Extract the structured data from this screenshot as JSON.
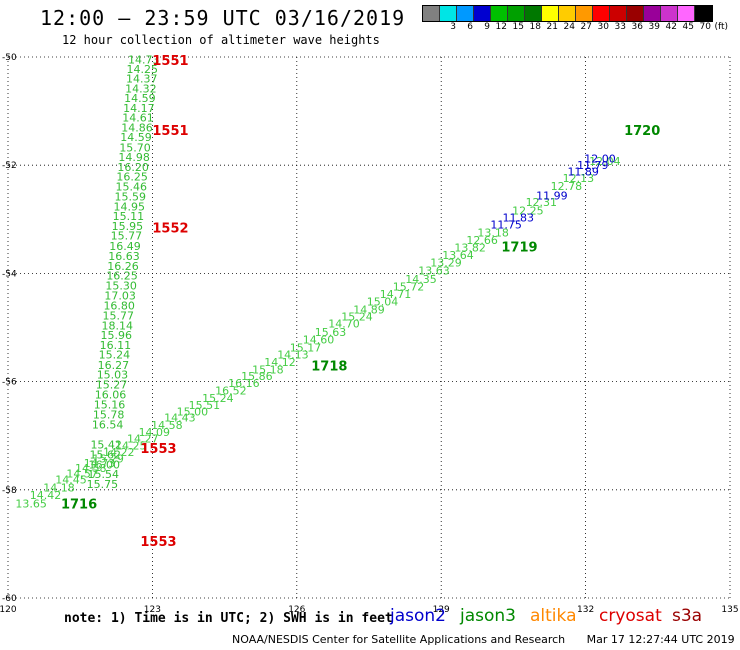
{
  "title": "12:00 – 23:59 UTC 03/16/2019",
  "subtitle": "12 hour collection of altimeter wave heights",
  "colorbar": {
    "colors": [
      "#808080",
      "#00e5e5",
      "#0099ff",
      "#0000d0",
      "#00c000",
      "#00a000",
      "#007800",
      "#ffff00",
      "#ffcc00",
      "#ff9900",
      "#ff0000",
      "#cc0000",
      "#990000",
      "#990099",
      "#cc33cc",
      "#ff66ff",
      "#000000"
    ],
    "labels": [
      "",
      "3",
      "6",
      "9",
      "12",
      "15",
      "18",
      "21",
      "24",
      "27",
      "30",
      "33",
      "36",
      "39",
      "42",
      "45",
      "70",
      "(ft)"
    ]
  },
  "note": "note: 1) Time is in UTC; 2) SWH is in feet",
  "legend": [
    {
      "name": "jason2",
      "color": "#0000cc"
    },
    {
      "name": "jason3",
      "color": "#008800"
    },
    {
      "name": "altika",
      "color": "#ff8800"
    },
    {
      "name": "cryosat",
      "color": "#dd0000"
    },
    {
      "name": "s3a",
      "color": "#990000"
    }
  ],
  "footer": {
    "credit": "NOAA/NESDIS Center for Satellite Applications and Research",
    "timestamp": "Mar 17 12:27:44 UTC 2019"
  },
  "chart_data": {
    "type": "scatter",
    "title": "12:00 – 23:59 UTC 03/16/2019",
    "subtitle": "12 hour collection of altimeter wave heights",
    "xlim": [
      120,
      135
    ],
    "ylim": [
      -60,
      -50
    ],
    "grid": true,
    "xticks": [
      {
        "v": 120,
        "t": "120"
      },
      {
        "v": 123,
        "t": "123"
      },
      {
        "v": 126,
        "t": "126"
      },
      {
        "v": 129,
        "t": "129"
      },
      {
        "v": 132,
        "t": "132"
      },
      {
        "v": 135,
        "t": "135"
      }
    ],
    "yticks": [
      {
        "v": -50,
        "t": "-50"
      },
      {
        "v": -52,
        "t": "-52"
      },
      {
        "v": -54,
        "t": "-54"
      },
      {
        "v": -56,
        "t": "-56"
      },
      {
        "v": -58,
        "t": "-58"
      },
      {
        "v": -60,
        "t": "-60"
      }
    ],
    "series": [
      {
        "color": "#33bb33",
        "points": [
          [
            122.82,
            -50.05,
            "14.73"
          ],
          [
            122.79,
            -50.22,
            "14.25"
          ],
          [
            122.78,
            -50.4,
            "14.37"
          ],
          [
            122.76,
            -50.58,
            "14.32"
          ],
          [
            122.74,
            -50.76,
            "14.59"
          ],
          [
            122.72,
            -50.94,
            "14.17"
          ],
          [
            122.7,
            -51.12,
            "14.61"
          ],
          [
            122.68,
            -51.3,
            "14.86"
          ],
          [
            122.66,
            -51.48,
            "14.59"
          ],
          [
            122.64,
            -51.67,
            "15.70"
          ],
          [
            122.62,
            -51.85,
            "14.98"
          ],
          [
            122.6,
            -52.03,
            "16.20"
          ],
          [
            122.58,
            -52.21,
            "16.25"
          ],
          [
            122.56,
            -52.39,
            "15.46"
          ],
          [
            122.54,
            -52.58,
            "15.59"
          ],
          [
            122.52,
            -52.76,
            "14.95"
          ],
          [
            122.5,
            -52.94,
            "15.11"
          ],
          [
            122.48,
            -53.12,
            "15.95"
          ],
          [
            122.46,
            -53.3,
            "15.77"
          ],
          [
            122.43,
            -53.49,
            "16.49"
          ],
          [
            122.41,
            -53.68,
            "16.63"
          ],
          [
            122.39,
            -53.86,
            "16.26"
          ],
          [
            122.37,
            -54.04,
            "16.25"
          ],
          [
            122.35,
            -54.22,
            "15.30"
          ],
          [
            122.33,
            -54.41,
            "17.03"
          ],
          [
            122.31,
            -54.59,
            "16.80"
          ],
          [
            122.29,
            -54.78,
            "15.77"
          ],
          [
            122.27,
            -54.96,
            "18.14"
          ],
          [
            122.25,
            -55.14,
            "15.96"
          ],
          [
            122.23,
            -55.32,
            "16.11"
          ],
          [
            122.21,
            -55.5,
            "15.24"
          ],
          [
            122.19,
            -55.69,
            "16.27"
          ],
          [
            122.17,
            -55.87,
            "15.03"
          ],
          [
            122.15,
            -56.05,
            "15.27"
          ],
          [
            122.13,
            -56.24,
            "16.06"
          ],
          [
            122.11,
            -56.42,
            "15.16"
          ],
          [
            122.09,
            -56.61,
            "15.78"
          ],
          [
            122.07,
            -56.79,
            "16.54"
          ],
          [
            122.04,
            -57.16,
            "15.42"
          ],
          [
            122.02,
            -57.35,
            "15.62"
          ],
          [
            122.0,
            -57.53,
            "16.00"
          ],
          [
            121.98,
            -57.71,
            "15.54"
          ],
          [
            121.96,
            -57.89,
            "15.75"
          ]
        ]
      },
      {
        "color": "#44cc44",
        "points": [
          [
            120.48,
            -58.25,
            "13.65"
          ],
          [
            120.78,
            -58.1,
            "14.42"
          ],
          [
            121.06,
            -57.96,
            "14.18"
          ],
          [
            121.31,
            -57.81,
            "14.45"
          ],
          [
            121.54,
            -57.7,
            "14.57"
          ],
          [
            121.72,
            -57.6,
            "14.58"
          ],
          [
            121.9,
            -57.5,
            "14.73"
          ],
          [
            122.08,
            -57.42,
            "15.29"
          ],
          [
            122.3,
            -57.3,
            "14.22"
          ],
          [
            122.55,
            -57.18,
            "14.25"
          ],
          [
            122.8,
            -57.05,
            "14.27"
          ],
          [
            123.04,
            -56.93,
            "14.09"
          ],
          [
            123.3,
            -56.8,
            "14.58"
          ],
          [
            123.57,
            -56.66,
            "14.43"
          ],
          [
            123.83,
            -56.55,
            "15.00"
          ],
          [
            124.08,
            -56.43,
            "15.51"
          ],
          [
            124.36,
            -56.3,
            "15.24"
          ],
          [
            124.63,
            -56.16,
            "16.52"
          ],
          [
            124.9,
            -56.03,
            "16.16"
          ],
          [
            125.17,
            -55.9,
            "15.86"
          ],
          [
            125.4,
            -55.78,
            "15.18"
          ],
          [
            125.65,
            -55.64,
            "14.12"
          ],
          [
            125.92,
            -55.5,
            "14.13"
          ],
          [
            126.18,
            -55.37,
            "15.17"
          ],
          [
            126.45,
            -55.22,
            "14.60"
          ],
          [
            126.7,
            -55.08,
            "15.63"
          ],
          [
            126.98,
            -54.93,
            "14.70"
          ],
          [
            127.25,
            -54.8,
            "15.24"
          ],
          [
            127.5,
            -54.67,
            "14.89"
          ],
          [
            127.78,
            -54.52,
            "15.04"
          ],
          [
            128.05,
            -54.38,
            "14.71"
          ],
          [
            128.32,
            -54.24,
            "15.72"
          ],
          [
            128.58,
            -54.1,
            "14.35"
          ],
          [
            128.85,
            -53.95,
            "13.63"
          ],
          [
            129.1,
            -53.8,
            "13.29"
          ],
          [
            129.35,
            -53.66,
            "13.64"
          ],
          [
            129.6,
            -53.52,
            "13.82"
          ],
          [
            129.85,
            -53.38,
            "12.66"
          ],
          [
            130.08,
            -53.24,
            "13.18"
          ],
          [
            130.8,
            -52.84,
            "12.25"
          ],
          [
            131.08,
            -52.68,
            "12.31"
          ],
          [
            131.6,
            -52.38,
            "12.78"
          ],
          [
            131.85,
            -52.24,
            "12.13"
          ],
          [
            132.4,
            -51.92,
            "12.04"
          ]
        ]
      },
      {
        "color": "#0000cc",
        "points": [
          [
            130.35,
            -53.1,
            "11.75"
          ],
          [
            130.6,
            -52.97,
            "11.83"
          ],
          [
            131.3,
            -52.56,
            "11.99"
          ],
          [
            131.95,
            -52.12,
            "11.89"
          ],
          [
            132.15,
            -52.0,
            "11.79"
          ],
          [
            132.3,
            -51.88,
            "12.00"
          ]
        ]
      }
    ],
    "labels": [
      {
        "x": 123.0,
        "y": -50.06,
        "t": "1551",
        "c": "#dd0000"
      },
      {
        "x": 123.0,
        "y": -51.35,
        "t": "1551",
        "c": "#dd0000"
      },
      {
        "x": 123.0,
        "y": -53.15,
        "t": "1552",
        "c": "#dd0000"
      },
      {
        "x": 122.75,
        "y": -57.23,
        "t": "1553",
        "c": "#dd0000"
      },
      {
        "x": 122.75,
        "y": -58.95,
        "t": "1553",
        "c": "#dd0000"
      },
      {
        "x": 121.1,
        "y": -58.25,
        "t": "1716",
        "c": "#008800"
      },
      {
        "x": 126.3,
        "y": -55.7,
        "t": "1718",
        "c": "#008800"
      },
      {
        "x": 130.25,
        "y": -53.5,
        "t": "1719",
        "c": "#008800"
      },
      {
        "x": 132.8,
        "y": -51.35,
        "t": "1720",
        "c": "#008800"
      }
    ]
  }
}
